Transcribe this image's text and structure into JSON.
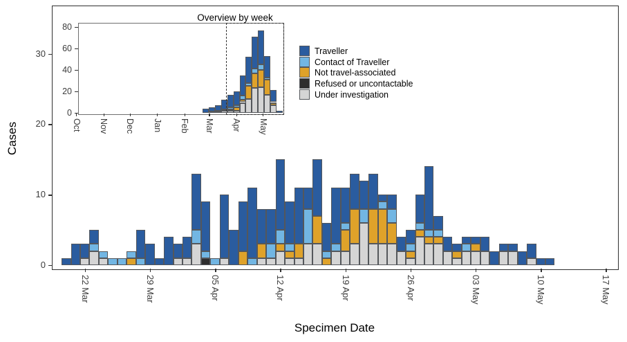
{
  "figure": {
    "ylabel": "Cases",
    "xlabel": "Specimen Date",
    "inset_title": "Overview by week"
  },
  "chart_data": {
    "type": "bar",
    "stacked": true,
    "stack_order_bottom_to_top": [
      "u",
      "r",
      "n",
      "c",
      "t"
    ],
    "legend": [
      {
        "key": "t",
        "label": "Traveller",
        "color": "#2A5C9F"
      },
      {
        "key": "c",
        "label": "Contact of Traveller",
        "color": "#72B6E3"
      },
      {
        "key": "n",
        "label": "Not travel-associated",
        "color": "#DFA22A"
      },
      {
        "key": "r",
        "label": "Refused or uncontactable",
        "color": "#2E2E2E"
      },
      {
        "key": "u",
        "label": "Under investigation",
        "color": "#D5D5D5"
      }
    ],
    "main": {
      "ylabel": "Cases",
      "xlabel": "Specimen Date",
      "yticks": [
        0,
        10,
        20,
        30
      ],
      "ylim": [
        0,
        36.9
      ],
      "xticks": [
        {
          "label": "22 Mar",
          "day": 2
        },
        {
          "label": "29 Mar",
          "day": 9
        },
        {
          "label": "05 Apr",
          "day": 16
        },
        {
          "label": "12 Apr",
          "day": 23
        },
        {
          "label": "19 Apr",
          "day": 30
        },
        {
          "label": "26 Apr",
          "day": 37
        },
        {
          "label": "03 May",
          "day": 44
        },
        {
          "label": "10 May",
          "day": 51
        },
        {
          "label": "17 May",
          "day": 58
        }
      ],
      "days": [
        {
          "date": "20 Mar",
          "u": 0,
          "r": 0,
          "n": 0,
          "c": 0,
          "t": 1
        },
        {
          "date": "21 Mar",
          "u": 0,
          "r": 0,
          "n": 0,
          "c": 0,
          "t": 3
        },
        {
          "date": "22 Mar",
          "u": 1,
          "r": 0,
          "n": 0,
          "c": 0,
          "t": 2
        },
        {
          "date": "23 Mar",
          "u": 2,
          "r": 0,
          "n": 0,
          "c": 1,
          "t": 2
        },
        {
          "date": "24 Mar",
          "u": 1,
          "r": 0,
          "n": 0,
          "c": 1,
          "t": 0
        },
        {
          "date": "25 Mar",
          "u": 0,
          "r": 0,
          "n": 0,
          "c": 1,
          "t": 0
        },
        {
          "date": "26 Mar",
          "u": 0,
          "r": 0,
          "n": 0,
          "c": 1,
          "t": 0
        },
        {
          "date": "27 Mar",
          "u": 0,
          "r": 0,
          "n": 1,
          "c": 1,
          "t": 0
        },
        {
          "date": "28 Mar",
          "u": 0,
          "r": 0,
          "n": 0,
          "c": 1,
          "t": 4
        },
        {
          "date": "29 Mar",
          "u": 0,
          "r": 0,
          "n": 0,
          "c": 0,
          "t": 3
        },
        {
          "date": "30 Mar",
          "u": 0,
          "r": 0,
          "n": 0,
          "c": 0,
          "t": 1
        },
        {
          "date": "31 Mar",
          "u": 0,
          "r": 0,
          "n": 0,
          "c": 0,
          "t": 4
        },
        {
          "date": "01 Apr",
          "u": 1,
          "r": 0,
          "n": 0,
          "c": 0,
          "t": 2
        },
        {
          "date": "02 Apr",
          "u": 1,
          "r": 0,
          "n": 0,
          "c": 0,
          "t": 3
        },
        {
          "date": "03 Apr",
          "u": 3,
          "r": 0,
          "n": 0,
          "c": 2,
          "t": 8
        },
        {
          "date": "04 Apr",
          "u": 0,
          "r": 1,
          "n": 0,
          "c": 1,
          "t": 7
        },
        {
          "date": "05 Apr",
          "u": 0,
          "r": 0,
          "n": 0,
          "c": 1,
          "t": 0
        },
        {
          "date": "06 Apr",
          "u": 1,
          "r": 0,
          "n": 0,
          "c": 0,
          "t": 9
        },
        {
          "date": "07 Apr",
          "u": 0,
          "r": 0,
          "n": 0,
          "c": 0,
          "t": 5
        },
        {
          "date": "08 Apr",
          "u": 0,
          "r": 0,
          "n": 2,
          "c": 0,
          "t": 7
        },
        {
          "date": "09 Apr",
          "u": 0,
          "r": 0,
          "n": 0,
          "c": 1,
          "t": 10
        },
        {
          "date": "10 Apr",
          "u": 1,
          "r": 0,
          "n": 2,
          "c": 0,
          "t": 5
        },
        {
          "date": "11 Apr",
          "u": 1,
          "r": 0,
          "n": 0,
          "c": 2,
          "t": 5
        },
        {
          "date": "12 Apr",
          "u": 2,
          "r": 0,
          "n": 1,
          "c": 2,
          "t": 10
        },
        {
          "date": "13 Apr",
          "u": 1,
          "r": 0,
          "n": 1,
          "c": 1,
          "t": 6
        },
        {
          "date": "14 Apr",
          "u": 1,
          "r": 0,
          "n": 2,
          "c": 0,
          "t": 8
        },
        {
          "date": "15 Apr",
          "u": 3,
          "r": 0,
          "n": 0,
          "c": 5,
          "t": 3
        },
        {
          "date": "16 Apr",
          "u": 3,
          "r": 0,
          "n": 4,
          "c": 0,
          "t": 8
        },
        {
          "date": "17 Apr",
          "u": 0,
          "r": 0,
          "n": 1,
          "c": 1,
          "t": 4
        },
        {
          "date": "18 Apr",
          "u": 2,
          "r": 0,
          "n": 0,
          "c": 1,
          "t": 8
        },
        {
          "date": "19 Apr",
          "u": 2,
          "r": 0,
          "n": 3,
          "c": 1,
          "t": 5
        },
        {
          "date": "20 Apr",
          "u": 3,
          "r": 0,
          "n": 5,
          "c": 0,
          "t": 5
        },
        {
          "date": "21 Apr",
          "u": 6,
          "r": 0,
          "n": 0,
          "c": 2,
          "t": 4
        },
        {
          "date": "22 Apr",
          "u": 3,
          "r": 0,
          "n": 5,
          "c": 0,
          "t": 5
        },
        {
          "date": "23 Apr",
          "u": 3,
          "r": 0,
          "n": 5,
          "c": 1,
          "t": 1
        },
        {
          "date": "24 Apr",
          "u": 3,
          "r": 0,
          "n": 3,
          "c": 2,
          "t": 2
        },
        {
          "date": "25 Apr",
          "u": 2,
          "r": 0,
          "n": 0,
          "c": 0,
          "t": 2
        },
        {
          "date": "26 Apr",
          "u": 1,
          "r": 0,
          "n": 1,
          "c": 1,
          "t": 2
        },
        {
          "date": "27 Apr",
          "u": 4,
          "r": 0,
          "n": 1,
          "c": 1,
          "t": 4
        },
        {
          "date": "28 Apr",
          "u": 3,
          "r": 0,
          "n": 1,
          "c": 1,
          "t": 9
        },
        {
          "date": "29 Apr",
          "u": 3,
          "r": 0,
          "n": 1,
          "c": 1,
          "t": 2
        },
        {
          "date": "30 Apr",
          "u": 2,
          "r": 0,
          "n": 0,
          "c": 0,
          "t": 2
        },
        {
          "date": "01 May",
          "u": 1,
          "r": 0,
          "n": 1,
          "c": 0,
          "t": 1
        },
        {
          "date": "02 May",
          "u": 2,
          "r": 0,
          "n": 0,
          "c": 1,
          "t": 1
        },
        {
          "date": "03 May",
          "u": 2,
          "r": 0,
          "n": 1,
          "c": 0,
          "t": 1
        },
        {
          "date": "04 May",
          "u": 2,
          "r": 0,
          "n": 0,
          "c": 0,
          "t": 2
        },
        {
          "date": "05 May",
          "u": 0,
          "r": 0,
          "n": 0,
          "c": 0,
          "t": 2
        },
        {
          "date": "06 May",
          "u": 2,
          "r": 0,
          "n": 0,
          "c": 0,
          "t": 1
        },
        {
          "date": "07 May",
          "u": 2,
          "r": 0,
          "n": 0,
          "c": 0,
          "t": 1
        },
        {
          "date": "08 May",
          "u": 0,
          "r": 0,
          "n": 0,
          "c": 0,
          "t": 2
        },
        {
          "date": "09 May",
          "u": 1,
          "r": 0,
          "n": 0,
          "c": 0,
          "t": 2
        },
        {
          "date": "10 May",
          "u": 0,
          "r": 0,
          "n": 0,
          "c": 0,
          "t": 1
        },
        {
          "date": "11 May",
          "u": 0,
          "r": 0,
          "n": 0,
          "c": 0,
          "t": 1
        }
      ]
    },
    "inset": {
      "title": "Overview by week",
      "yticks": [
        0,
        20,
        40,
        60,
        80
      ],
      "ylim": [
        0,
        80
      ],
      "months": [
        "Oct",
        "Nov",
        "Dec",
        "Jan",
        "Feb",
        "Mar",
        "Apr",
        "May"
      ],
      "weeks": [
        {
          "u": 0,
          "r": 0,
          "n": 0,
          "c": 0,
          "t": 4
        },
        {
          "u": 1,
          "r": 0,
          "n": 0,
          "c": 0,
          "t": 4
        },
        {
          "u": 1,
          "r": 0,
          "n": 0,
          "c": 1,
          "t": 5
        },
        {
          "u": 2,
          "r": 0,
          "n": 0,
          "c": 1,
          "t": 9
        },
        {
          "u": 2,
          "r": 0,
          "n": 1,
          "c": 2,
          "t": 12
        },
        {
          "u": 2,
          "r": 0,
          "n": 3,
          "c": 2,
          "t": 13
        },
        {
          "u": 9,
          "r": 1,
          "n": 2,
          "c": 4,
          "t": 19
        },
        {
          "u": 13,
          "r": 0,
          "n": 12,
          "c": 3,
          "t": 24
        },
        {
          "u": 23,
          "r": 0,
          "n": 14,
          "c": 4,
          "t": 30
        },
        {
          "u": 24,
          "r": 0,
          "n": 16,
          "c": 5,
          "t": 32
        },
        {
          "u": 17,
          "r": 0,
          "n": 14,
          "c": 2,
          "t": 20
        },
        {
          "u": 7,
          "r": 0,
          "n": 2,
          "c": 1,
          "t": 11
        },
        {
          "u": 0,
          "r": 0,
          "n": 0,
          "c": 0,
          "t": 2
        }
      ],
      "zoom_region_weeks": [
        3,
        13
      ]
    }
  }
}
